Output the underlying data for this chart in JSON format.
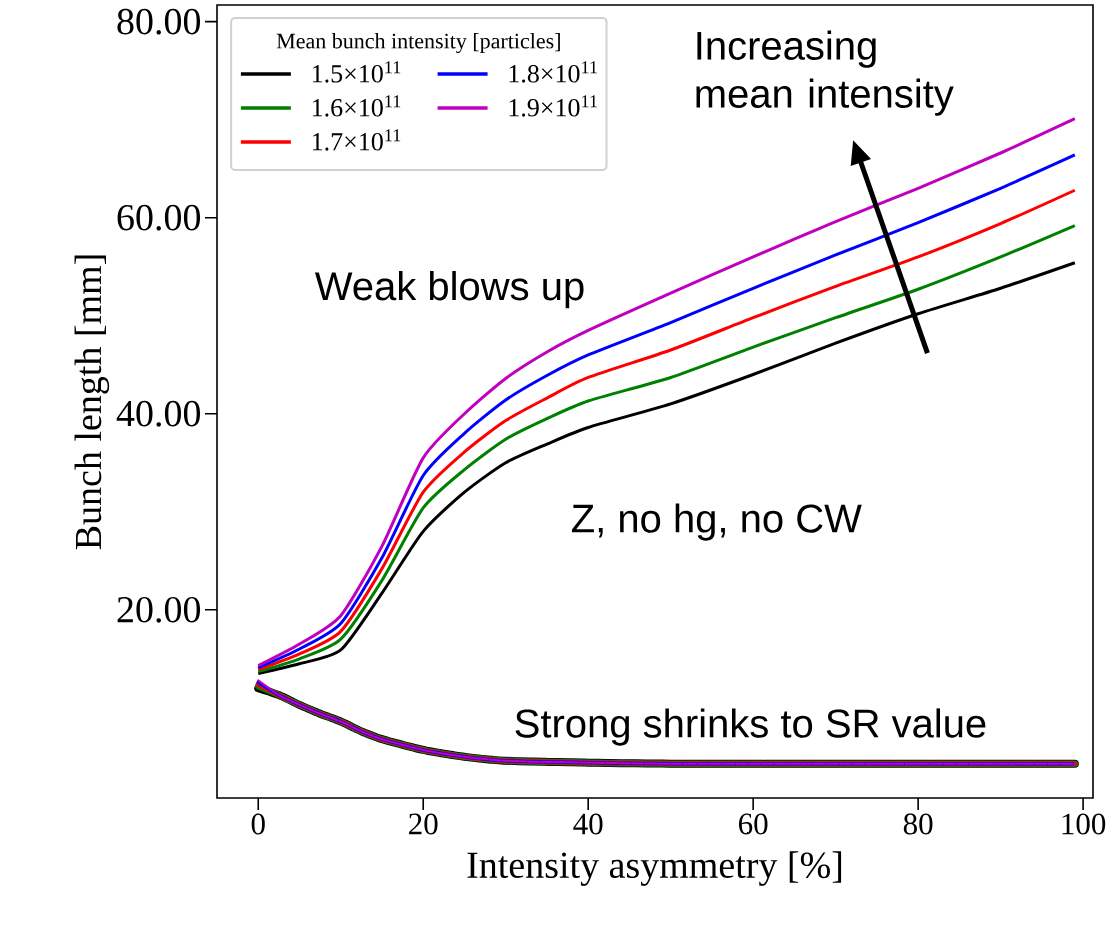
{
  "chart_data": {
    "type": "line",
    "xlabel": "Intensity asymmetry [%]",
    "ylabel": "Bunch length [mm]",
    "legend_title": "Mean bunch intensity [particles]",
    "xlim": [
      -5,
      101.2
    ],
    "ylim": [
      0.8,
      81.7
    ],
    "xticks": [
      0,
      20,
      40,
      60,
      80,
      100
    ],
    "yticks": [
      {
        "value": 20,
        "label": "20.00"
      },
      {
        "value": 40,
        "label": "40.00"
      },
      {
        "value": 60,
        "label": "60.00"
      },
      {
        "value": 80,
        "label": "80.00"
      }
    ],
    "grid": false,
    "legend": "top left",
    "marker": "none",
    "series": [
      {
        "name": "1.5×10$^{11}$",
        "color": "#000000",
        "line_style": "solid",
        "x": [
          0,
          5,
          10,
          15,
          20,
          25,
          30,
          35,
          40,
          50,
          60,
          70,
          80,
          90,
          99
        ],
        "values": [
          13.5,
          14.5,
          15.9,
          21.7,
          28.0,
          32.0,
          35.0,
          36.9,
          38.6,
          41.0,
          44.0,
          47.2,
          50.2,
          52.8,
          55.4
        ]
      },
      {
        "name": "1.6×10$^{11}$",
        "color": "#008000",
        "line_style": "solid",
        "x": [
          0,
          5,
          10,
          15,
          20,
          25,
          30,
          35,
          40,
          50,
          60,
          70,
          80,
          90,
          99
        ],
        "values": [
          13.7,
          15.0,
          17.0,
          23.0,
          30.4,
          34.3,
          37.4,
          39.5,
          41.3,
          43.7,
          46.8,
          49.8,
          52.7,
          56.0,
          59.2
        ]
      },
      {
        "name": "1.7×10$^{11}$",
        "color": "#ff0000",
        "line_style": "solid",
        "x": [
          0,
          5,
          10,
          15,
          20,
          25,
          30,
          35,
          40,
          50,
          60,
          70,
          80,
          90,
          99
        ],
        "values": [
          13.9,
          15.5,
          17.8,
          24.2,
          32.0,
          36.1,
          39.3,
          41.6,
          43.7,
          46.5,
          49.8,
          53.0,
          56.0,
          59.4,
          62.8
        ]
      },
      {
        "name": "1.8×10$^{11}$",
        "color": "#0000ff",
        "line_style": "solid",
        "x": [
          0,
          5,
          10,
          15,
          20,
          25,
          30,
          35,
          40,
          50,
          60,
          70,
          80,
          90,
          99
        ],
        "values": [
          14.1,
          16.0,
          18.6,
          25.3,
          33.7,
          38.0,
          41.4,
          43.9,
          46.0,
          49.3,
          52.8,
          56.2,
          59.5,
          63.0,
          66.4
        ]
      },
      {
        "name": "1.9×10$^{11}$",
        "color": "#bf00bf",
        "line_style": "solid",
        "x": [
          0,
          5,
          10,
          15,
          20,
          25,
          30,
          35,
          40,
          50,
          60,
          70,
          80,
          90,
          99
        ],
        "values": [
          14.3,
          16.5,
          19.4,
          26.5,
          35.5,
          40.0,
          43.6,
          46.3,
          48.5,
          52.3,
          56.0,
          59.6,
          63.0,
          66.6,
          70.1
        ]
      },
      {
        "color": "#000000",
        "line_style": "dashed",
        "x": [
          0,
          2.5,
          5,
          7.5,
          10,
          12.5,
          15,
          20,
          25,
          30,
          40,
          50,
          60,
          80,
          99
        ],
        "values": [
          12.0,
          11.3,
          10.3,
          9.4,
          8.6,
          7.6,
          6.8,
          5.7,
          5.0,
          4.6,
          4.4,
          4.3,
          4.3,
          4.3,
          4.3
        ]
      },
      {
        "color": "#008000",
        "line_style": "dashed",
        "x": [
          0,
          2.5,
          5,
          7.5,
          10,
          12.5,
          15,
          20,
          25,
          30,
          40,
          50,
          60,
          80,
          99
        ],
        "values": [
          12.2,
          11.3,
          10.3,
          9.4,
          8.6,
          7.6,
          6.8,
          5.7,
          5.0,
          4.6,
          4.4,
          4.3,
          4.3,
          4.3,
          4.3
        ]
      },
      {
        "color": "#ff0000",
        "line_style": "dashed",
        "x": [
          0,
          2.5,
          5,
          7.5,
          10,
          12.5,
          15,
          20,
          25,
          30,
          40,
          50,
          60,
          80,
          99
        ],
        "values": [
          12.4,
          11.3,
          10.3,
          9.4,
          8.6,
          7.6,
          6.8,
          5.7,
          5.0,
          4.6,
          4.4,
          4.3,
          4.3,
          4.3,
          4.3
        ]
      },
      {
        "color": "#0000ff",
        "line_style": "dashed",
        "x": [
          0,
          2.5,
          5,
          7.5,
          10,
          12.5,
          15,
          20,
          25,
          30,
          40,
          50,
          60,
          80,
          99
        ],
        "values": [
          12.6,
          11.3,
          10.3,
          9.4,
          8.6,
          7.6,
          6.8,
          5.7,
          5.0,
          4.6,
          4.4,
          4.3,
          4.3,
          4.3,
          4.3
        ]
      },
      {
        "color": "#bf00bf",
        "line_style": "dashed",
        "x": [
          0,
          2.5,
          5,
          7.5,
          10,
          12.5,
          15,
          20,
          25,
          30,
          40,
          50,
          60,
          80,
          99
        ],
        "values": [
          12.8,
          11.3,
          10.3,
          9.4,
          8.6,
          7.6,
          6.8,
          5.7,
          5.0,
          4.6,
          4.4,
          4.3,
          4.3,
          4.3,
          4.3
        ]
      }
    ],
    "annotations": [
      "Weak blows up",
      "Strong shrinks to SR value",
      "Increasing mean intensity",
      "Z, no hg, no CW"
    ]
  }
}
